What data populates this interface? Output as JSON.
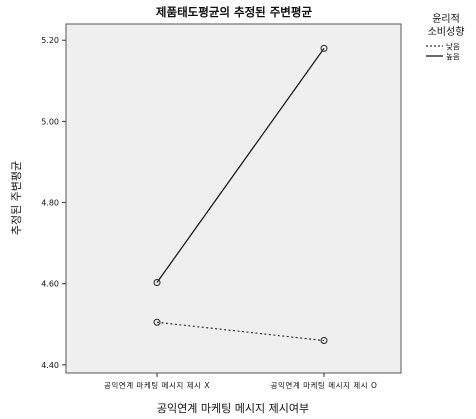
{
  "chart_data": {
    "type": "line",
    "title": "제품태도평균의 추정된 주변평균",
    "xlabel": "공익연계 마케팅 메시지 제시여부",
    "ylabel": "추정된 주변평균",
    "categories": [
      "공익연계 마케팅 메시지 제시 X",
      "공익연계 마케팅 메시지 제시 O"
    ],
    "ylim": [
      4.38,
      5.24
    ],
    "yticks": [
      "4.40",
      "4.60",
      "4.80",
      "5.00",
      "5.20"
    ],
    "legend": {
      "title_lines": [
        "윤리적",
        "소비성향"
      ],
      "placement": "right"
    },
    "series": [
      {
        "name": "낮음",
        "values": [
          4.505,
          4.46
        ],
        "style": "dotted",
        "color": "#333333"
      },
      {
        "name": "높음",
        "values": [
          4.603,
          5.18
        ],
        "style": "solid",
        "color": "#111111"
      }
    ],
    "plot_background": "#efefef",
    "grid": false
  }
}
